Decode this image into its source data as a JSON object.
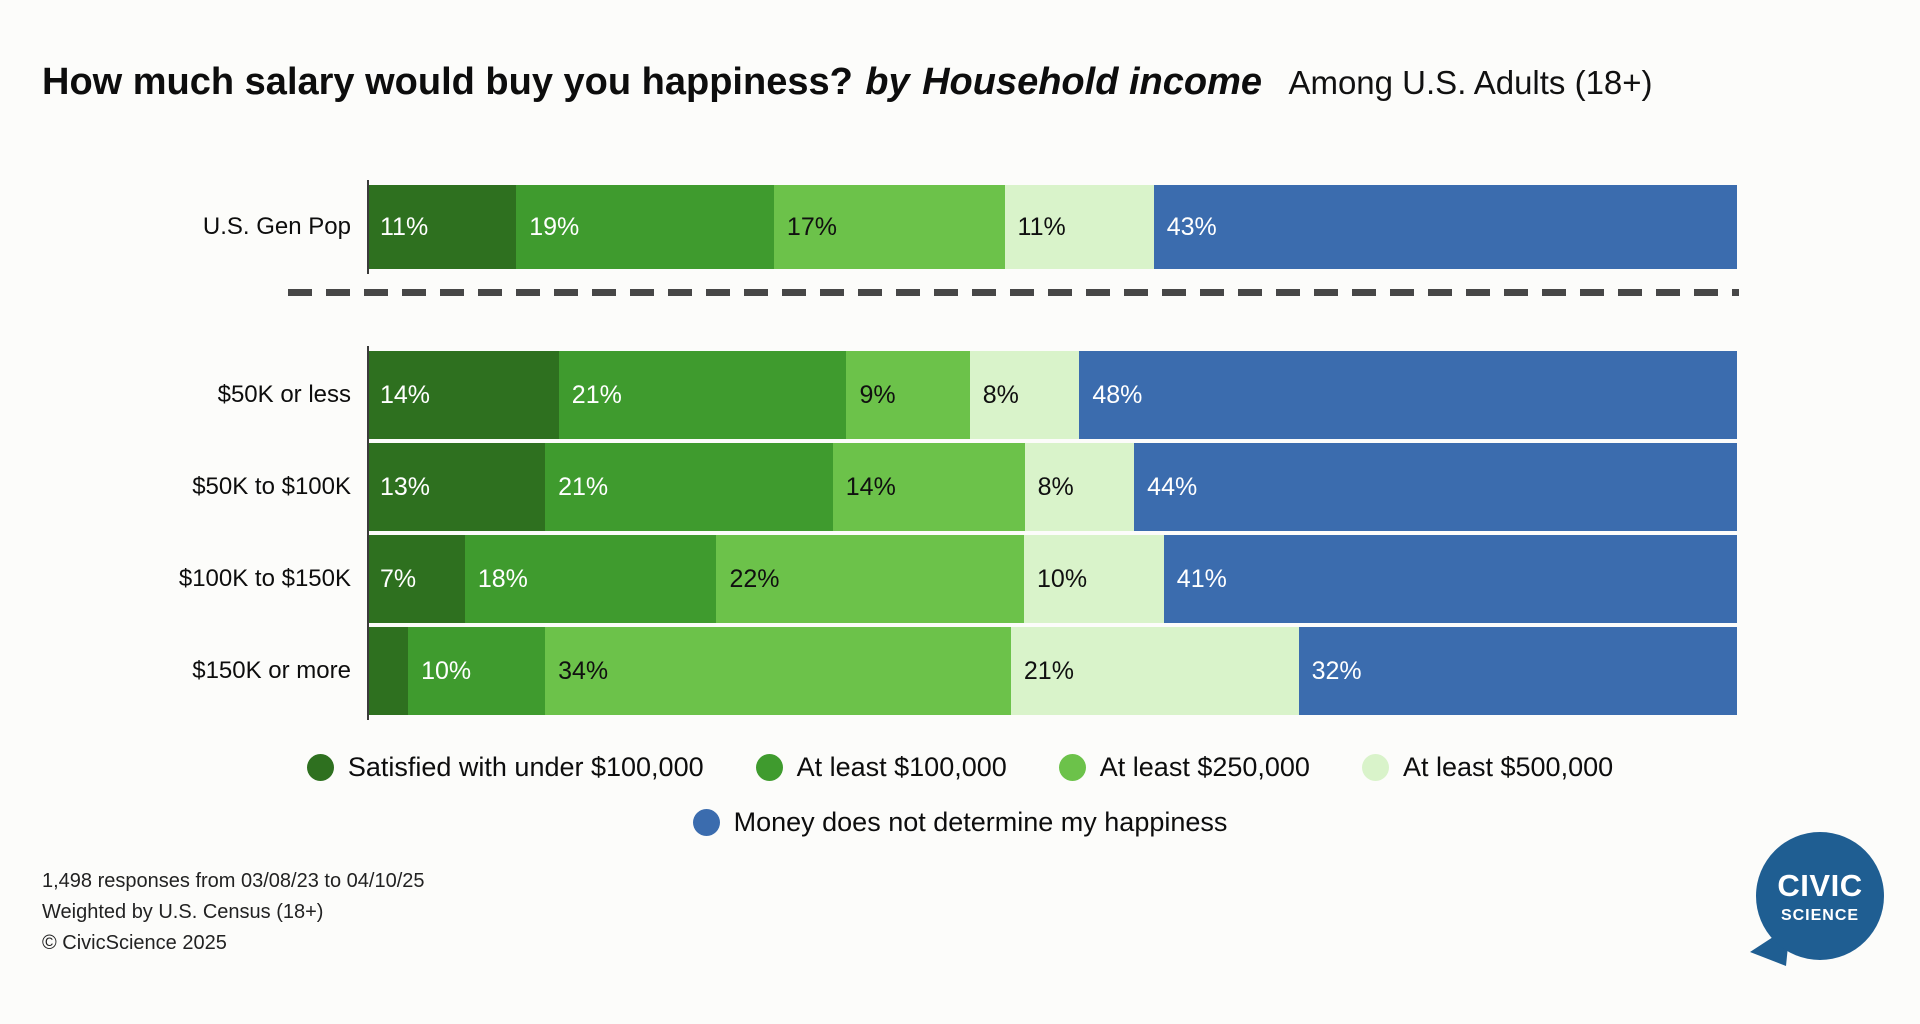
{
  "title": {
    "question": "How much salary would buy you happiness?",
    "by": "by",
    "segment": "Household income",
    "audience": "Among U.S. Adults (18+)"
  },
  "chart_data": {
    "type": "bar",
    "variant": "horizontal-stacked-100",
    "unit": "percent",
    "series_labels": [
      "Satisfied with under $100,000",
      "At least $100,000",
      "At least $250,000",
      "At least $500,000",
      "Money does not determine my happiness"
    ],
    "series_colors": [
      "#2e701f",
      "#3f9b2e",
      "#6cc24a",
      "#d9f3ca",
      "#3b6cae"
    ],
    "series_text_colors": [
      "#ffffff",
      "#ffffff",
      "#101010",
      "#101010",
      "#ffffff"
    ],
    "rows": [
      {
        "label": "U.S. Gen Pop",
        "values": [
          11,
          19,
          17,
          11,
          43
        ],
        "value_labels": [
          "11%",
          "19%",
          "17%",
          "11%",
          "43%"
        ]
      },
      {
        "label": "$50K or less",
        "values": [
          14,
          21,
          9,
          8,
          48
        ],
        "value_labels": [
          "14%",
          "21%",
          "9%",
          "8%",
          "48%"
        ]
      },
      {
        "label": "$50K to $100K",
        "values": [
          13,
          21,
          14,
          8,
          44
        ],
        "value_labels": [
          "13%",
          "21%",
          "14%",
          "8%",
          "44%"
        ]
      },
      {
        "label": "$100K to $150K",
        "values": [
          7,
          18,
          22,
          10,
          41
        ],
        "value_labels": [
          "7%",
          "18%",
          "22%",
          "10%",
          "41%"
        ]
      },
      {
        "label": "$150K or more",
        "values": [
          3,
          10,
          34,
          21,
          32
        ],
        "value_labels": [
          "",
          "10%",
          "34%",
          "21%",
          "32%"
        ]
      }
    ],
    "legend_line_split": 4
  },
  "footer": {
    "line1": "1,498 responses from 03/08/23 to 04/10/25",
    "line2": "Weighted by U.S. Census (18+)",
    "line3": "© CivicScience 2025"
  },
  "logo": {
    "line1": "CIVIC",
    "line2": "SCIENCE",
    "color": "#1f5e92"
  }
}
